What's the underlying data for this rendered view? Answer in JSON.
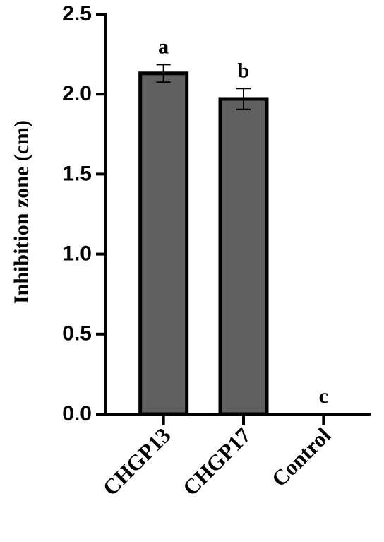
{
  "chart_data": {
    "type": "bar",
    "y_label": "Inhibition zone (cm)",
    "categories": [
      "CHGP13",
      "CHGP17",
      "Control"
    ],
    "values": [
      2.13,
      1.97,
      0
    ],
    "errors": [
      0.055,
      0.065,
      0
    ],
    "annotations": [
      "a",
      "b",
      "c"
    ],
    "color": "#606060",
    "ylim": [
      0,
      2.5
    ],
    "yticks": [
      {
        "value": 0,
        "label": "0.0"
      },
      {
        "value": 0.5,
        "label": "0.5"
      },
      {
        "value": 1,
        "label": "1.0"
      },
      {
        "value": 1.5,
        "label": "1.5"
      },
      {
        "value": 2,
        "label": "2.0"
      },
      {
        "value": 2.5,
        "label": "2.5"
      }
    ],
    "grid": false
  }
}
